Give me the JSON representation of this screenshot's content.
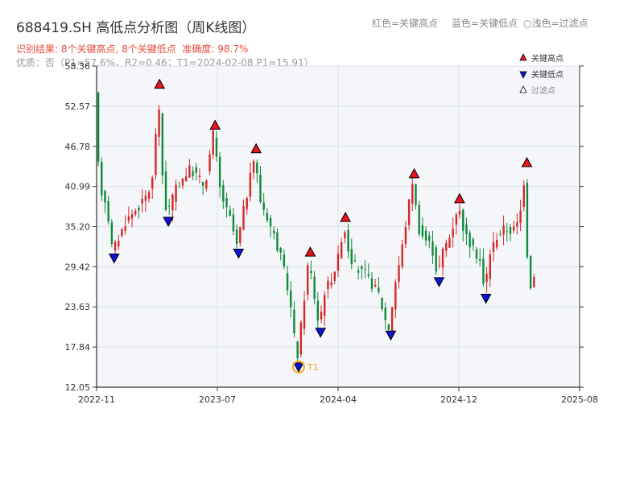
{
  "header": {
    "title": "688419.SH 高低点分析图（周K线图）",
    "legend_red": "红色=关键高点",
    "legend_blue": "蓝色=关键低点",
    "legend_hollow": "○浅色=过滤点",
    "result_label": "识别结果: 8个关键高点, 8个关键低点",
    "accuracy_label": "准确度: 98.7%",
    "quality_line": "优质：否（P1=57.6%，R2=0.46；T1=2024-02-08 P1=15.91）"
  },
  "legend": {
    "high_label": "关键高点",
    "low_label": "关键低点",
    "filtered_label": "过滤点"
  },
  "colors": {
    "up": "#d62728",
    "down": "#0f8a3a",
    "high_marker": "#e8131b",
    "low_marker": "#0b12d8",
    "t1_ring": "#f5a623",
    "plot_bg": "#f4f6f9",
    "grid": "#dde3ea"
  },
  "chart_data": {
    "type": "candlestick",
    "ylim": [
      12.05,
      58.36
    ],
    "yticks": [
      "12.05",
      "17.84",
      "23.63",
      "29.42",
      "35.20",
      "40.99",
      "46.78",
      "52.57",
      "58.36"
    ],
    "xticks": [
      "2022-11",
      "2023-07",
      "2024-04",
      "2024-12",
      "2025-08"
    ],
    "xrange": [
      "2022-11",
      "2025-08"
    ],
    "key_highs": [
      {
        "month": 4.3,
        "price": 54.8
      },
      {
        "month": 8.1,
        "price": 48.9
      },
      {
        "month": 10.9,
        "price": 45.5
      },
      {
        "month": 14.6,
        "price": 30.6
      },
      {
        "month": 17.0,
        "price": 35.6
      },
      {
        "month": 21.7,
        "price": 41.9
      },
      {
        "month": 24.8,
        "price": 38.3
      },
      {
        "month": 29.4,
        "price": 43.5
      }
    ],
    "key_lows": [
      {
        "month": 1.2,
        "price": 31.6
      },
      {
        "month": 4.9,
        "price": 36.9
      },
      {
        "month": 9.7,
        "price": 32.3
      },
      {
        "month": 13.8,
        "price": 15.9
      },
      {
        "month": 15.3,
        "price": 20.9
      },
      {
        "month": 20.1,
        "price": 20.5
      },
      {
        "month": 23.4,
        "price": 28.2
      },
      {
        "month": 26.6,
        "price": 25.8
      }
    ],
    "t1": {
      "month": 13.8,
      "price": 15.9,
      "label": "T1"
    },
    "path": [
      [
        0.0,
        54.0
      ],
      [
        0.3,
        41.0
      ],
      [
        0.8,
        38.5
      ],
      [
        1.2,
        31.6
      ],
      [
        1.6,
        33.5
      ],
      [
        2.1,
        36.0
      ],
      [
        2.7,
        37.5
      ],
      [
        3.2,
        38.5
      ],
      [
        3.7,
        40.5
      ],
      [
        4.0,
        42.5
      ],
      [
        4.3,
        54.8
      ],
      [
        4.6,
        43.0
      ],
      [
        4.9,
        36.9
      ],
      [
        5.4,
        40.0
      ],
      [
        5.9,
        42.0
      ],
      [
        6.5,
        43.5
      ],
      [
        7.0,
        42.5
      ],
      [
        7.5,
        41.0
      ],
      [
        8.1,
        48.9
      ],
      [
        8.5,
        41.0
      ],
      [
        8.9,
        38.0
      ],
      [
        9.3,
        36.0
      ],
      [
        9.7,
        32.3
      ],
      [
        10.1,
        37.0
      ],
      [
        10.5,
        41.0
      ],
      [
        10.9,
        45.5
      ],
      [
        11.3,
        39.0
      ],
      [
        11.8,
        36.5
      ],
      [
        12.3,
        33.5
      ],
      [
        12.8,
        30.0
      ],
      [
        13.3,
        25.0
      ],
      [
        13.8,
        15.9
      ],
      [
        14.2,
        23.0
      ],
      [
        14.6,
        30.6
      ],
      [
        14.9,
        26.5
      ],
      [
        15.3,
        20.9
      ],
      [
        15.7,
        26.0
      ],
      [
        16.2,
        28.0
      ],
      [
        16.6,
        30.5
      ],
      [
        17.0,
        35.6
      ],
      [
        17.4,
        31.0
      ],
      [
        17.9,
        29.0
      ],
      [
        18.4,
        28.5
      ],
      [
        18.9,
        27.0
      ],
      [
        19.4,
        25.5
      ],
      [
        19.8,
        22.0
      ],
      [
        20.1,
        20.5
      ],
      [
        20.5,
        27.0
      ],
      [
        20.9,
        31.0
      ],
      [
        21.3,
        36.5
      ],
      [
        21.7,
        41.9
      ],
      [
        22.1,
        35.0
      ],
      [
        22.5,
        33.5
      ],
      [
        23.0,
        32.5
      ],
      [
        23.4,
        28.2
      ],
      [
        23.8,
        32.0
      ],
      [
        24.3,
        34.0
      ],
      [
        24.8,
        38.3
      ],
      [
        25.3,
        34.0
      ],
      [
        25.8,
        32.0
      ],
      [
        26.3,
        30.5
      ],
      [
        26.6,
        25.8
      ],
      [
        27.0,
        31.5
      ],
      [
        27.5,
        34.0
      ],
      [
        28.0,
        35.0
      ],
      [
        28.5,
        34.5
      ],
      [
        29.0,
        36.0
      ],
      [
        29.4,
        43.5
      ],
      [
        29.6,
        26.0
      ],
      [
        30.0,
        28.0
      ]
    ]
  }
}
